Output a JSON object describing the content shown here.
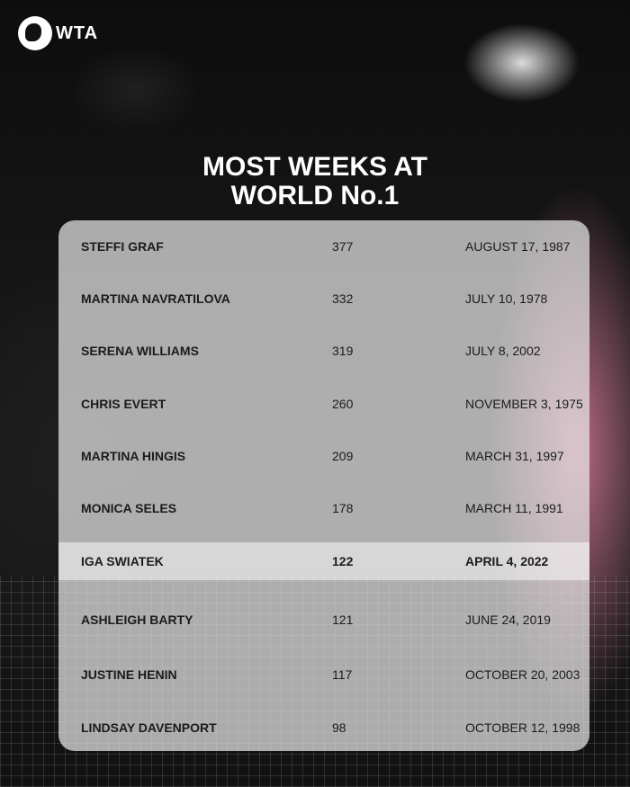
{
  "brand": {
    "logo_text": "WTA"
  },
  "title_lines": [
    "MOST WEEKS AT",
    "WORLD No.1"
  ],
  "rows": [
    {
      "name": "STEFFI GRAF",
      "weeks": "377",
      "date": "AUGUST 17, 1987"
    },
    {
      "name": "MARTINA NAVRATILOVA",
      "weeks": "332",
      "date": "JULY 10, 1978"
    },
    {
      "name": "SERENA WILLIAMS",
      "weeks": "319",
      "date": "JULY 8, 2002"
    },
    {
      "name": "CHRIS EVERT",
      "weeks": "260",
      "date": "NOVEMBER 3, 1975"
    },
    {
      "name": "MARTINA HINGIS",
      "weeks": "209",
      "date": "MARCH 31, 1997"
    },
    {
      "name": "MONICA SELES",
      "weeks": "178",
      "date": "MARCH 11, 1991"
    },
    {
      "name": "IGA SWIATEK",
      "weeks": "122",
      "date": "APRIL 4, 2022",
      "highlighted": true
    },
    {
      "name": "ASHLEIGH BARTY",
      "weeks": "121",
      "date": "JUNE 24, 2019"
    },
    {
      "name": "JUSTINE HENIN",
      "weeks": "117",
      "date": "OCTOBER 20, 2003"
    },
    {
      "name": "LINDSAY DAVENPORT",
      "weeks": "98",
      "date": "OCTOBER 12, 1998"
    }
  ]
}
